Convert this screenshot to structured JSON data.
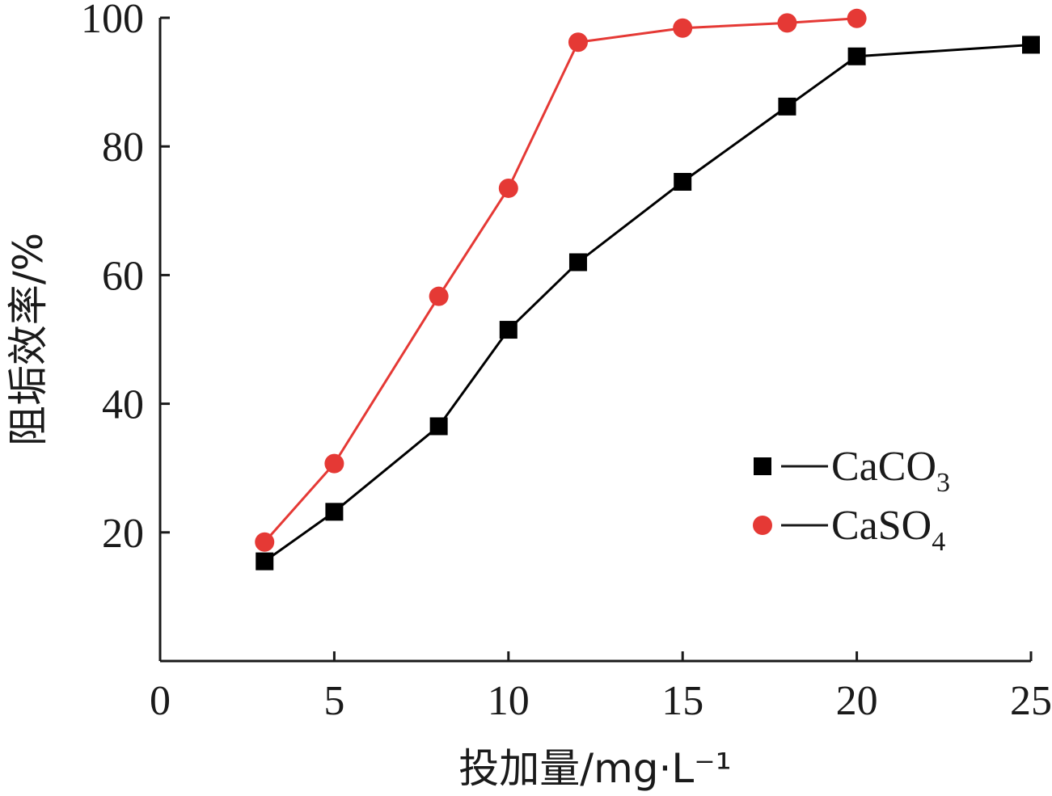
{
  "chart_data": {
    "type": "line",
    "title": "",
    "xlabel": "投加量/mg·L⁻¹",
    "ylabel": "阻垢效率/%",
    "xlim": [
      0,
      25
    ],
    "ylim": [
      0,
      100
    ],
    "x_ticks": [
      "0",
      "5",
      "10",
      "15",
      "20",
      "25"
    ],
    "y_ticks": [
      "20",
      "40",
      "60",
      "80",
      "100"
    ],
    "grid": false,
    "legend_position": "right-middle",
    "series": [
      {
        "name": "CaCO",
        "name_subscript": "3",
        "marker": "square",
        "color": "#000000",
        "points": [
          [
            3,
            15.5
          ],
          [
            5,
            23.2
          ],
          [
            8,
            36.5
          ],
          [
            10,
            51.5
          ],
          [
            12,
            62.0
          ],
          [
            15,
            74.5
          ],
          [
            18,
            86.2
          ],
          [
            20,
            94.0
          ],
          [
            25,
            95.8
          ]
        ]
      },
      {
        "name": "CaSO",
        "name_subscript": "4",
        "marker": "circle",
        "color": "#e53935",
        "points": [
          [
            3,
            18.5
          ],
          [
            5,
            30.7
          ],
          [
            8,
            56.7
          ],
          [
            10,
            73.5
          ],
          [
            12,
            96.2
          ],
          [
            15,
            98.4
          ],
          [
            18,
            99.2
          ],
          [
            20,
            99.9
          ]
        ]
      }
    ]
  }
}
